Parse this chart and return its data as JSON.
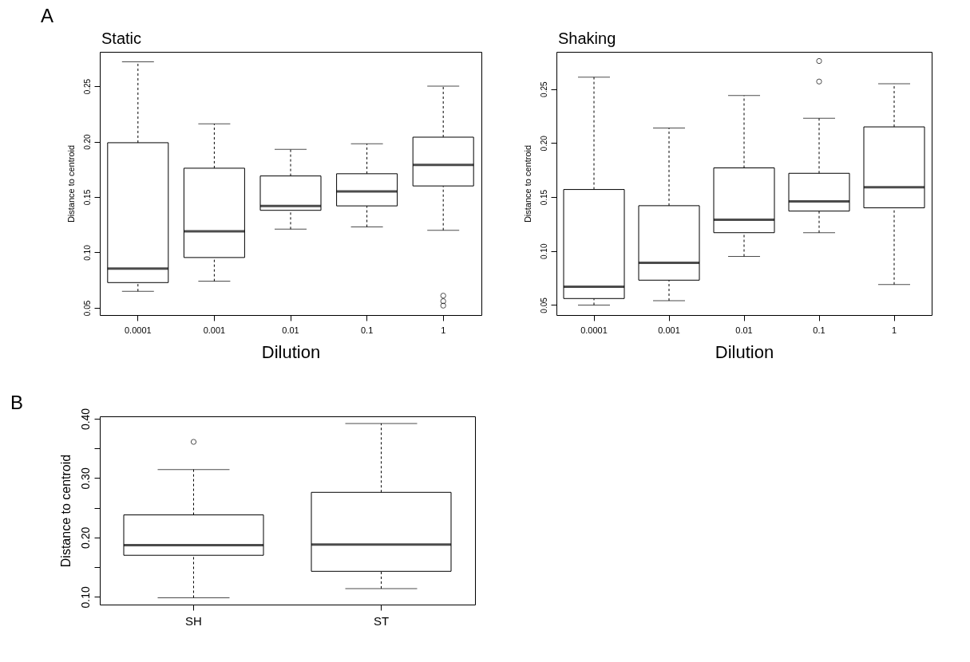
{
  "chart_data": [
    {
      "type": "box",
      "title": "Static",
      "xlabel": "Dilution",
      "ylabel": "Distance to centroid",
      "annotations": [
        "A"
      ],
      "categories": [
        "0.0001",
        "0.001",
        "0.01",
        "0.1",
        "1"
      ],
      "ylim": [
        0.0435,
        0.281
      ],
      "yticks": [
        {
          "value": 0.05,
          "label": "0.05"
        },
        {
          "value": 0.1,
          "label": "0.10"
        },
        {
          "value": 0.15,
          "label": "0.15"
        },
        {
          "value": 0.2,
          "label": "0.20"
        },
        {
          "value": 0.25,
          "label": "0.25"
        }
      ],
      "boxes": [
        {
          "low": 0.065,
          "q1": 0.0728,
          "median": 0.0855,
          "q3": 0.199,
          "high": 0.272
        },
        {
          "low": 0.074,
          "q1": 0.0954,
          "median": 0.119,
          "q3": 0.176,
          "high": 0.216
        },
        {
          "low": 0.121,
          "q1": 0.138,
          "median": 0.142,
          "q3": 0.169,
          "high": 0.193
        },
        {
          "low": 0.123,
          "q1": 0.142,
          "median": 0.155,
          "q3": 0.171,
          "high": 0.198
        },
        {
          "low": 0.12,
          "q1": 0.16,
          "median": 0.179,
          "q3": 0.204,
          "high": 0.25,
          "outliers": [
            0.061,
            0.056,
            0.052
          ]
        }
      ]
    },
    {
      "type": "box",
      "title": "Shaking",
      "xlabel": "Dilution",
      "ylabel": "Distance to centroid",
      "categories": [
        "0.0001",
        "0.001",
        "0.01",
        "0.1",
        "1"
      ],
      "ylim": [
        0.0407,
        0.2845
      ],
      "yticks": [
        {
          "value": 0.05,
          "label": "0.05"
        },
        {
          "value": 0.1,
          "label": "0.10"
        },
        {
          "value": 0.15,
          "label": "0.15"
        },
        {
          "value": 0.2,
          "label": "0.20"
        },
        {
          "value": 0.25,
          "label": "0.25"
        }
      ],
      "boxes": [
        {
          "low": 0.05,
          "q1": 0.056,
          "median": 0.067,
          "q3": 0.157,
          "high": 0.261
        },
        {
          "low": 0.054,
          "q1": 0.073,
          "median": 0.089,
          "q3": 0.142,
          "high": 0.214
        },
        {
          "low": 0.095,
          "q1": 0.117,
          "median": 0.129,
          "q3": 0.177,
          "high": 0.244
        },
        {
          "low": 0.117,
          "q1": 0.137,
          "median": 0.146,
          "q3": 0.172,
          "high": 0.223,
          "outliers": [
            0.276,
            0.257
          ]
        },
        {
          "low": 0.069,
          "q1": 0.14,
          "median": 0.159,
          "q3": 0.215,
          "high": 0.255
        }
      ]
    },
    {
      "type": "box",
      "ylabel": "Distance to centroid",
      "annotations": [
        "B"
      ],
      "categories": [
        "SH",
        "ST"
      ],
      "ylim": [
        0.087,
        0.404
      ],
      "yticks": [
        {
          "value": 0.1,
          "label": "0.10"
        },
        {
          "value": 0.15,
          "label": null
        },
        {
          "value": 0.2,
          "label": "0.20"
        },
        {
          "value": 0.25,
          "label": null
        },
        {
          "value": 0.3,
          "label": "0.30"
        },
        {
          "value": 0.35,
          "label": null
        },
        {
          "value": 0.4,
          "label": "0.40"
        }
      ],
      "boxes": [
        {
          "low": 0.0985,
          "q1": 0.17,
          "median": 0.187,
          "q3": 0.238,
          "high": 0.3145,
          "outliers": [
            0.361
          ]
        },
        {
          "low": 0.114,
          "q1": 0.143,
          "median": 0.188,
          "q3": 0.276,
          "high": 0.392
        }
      ]
    }
  ]
}
